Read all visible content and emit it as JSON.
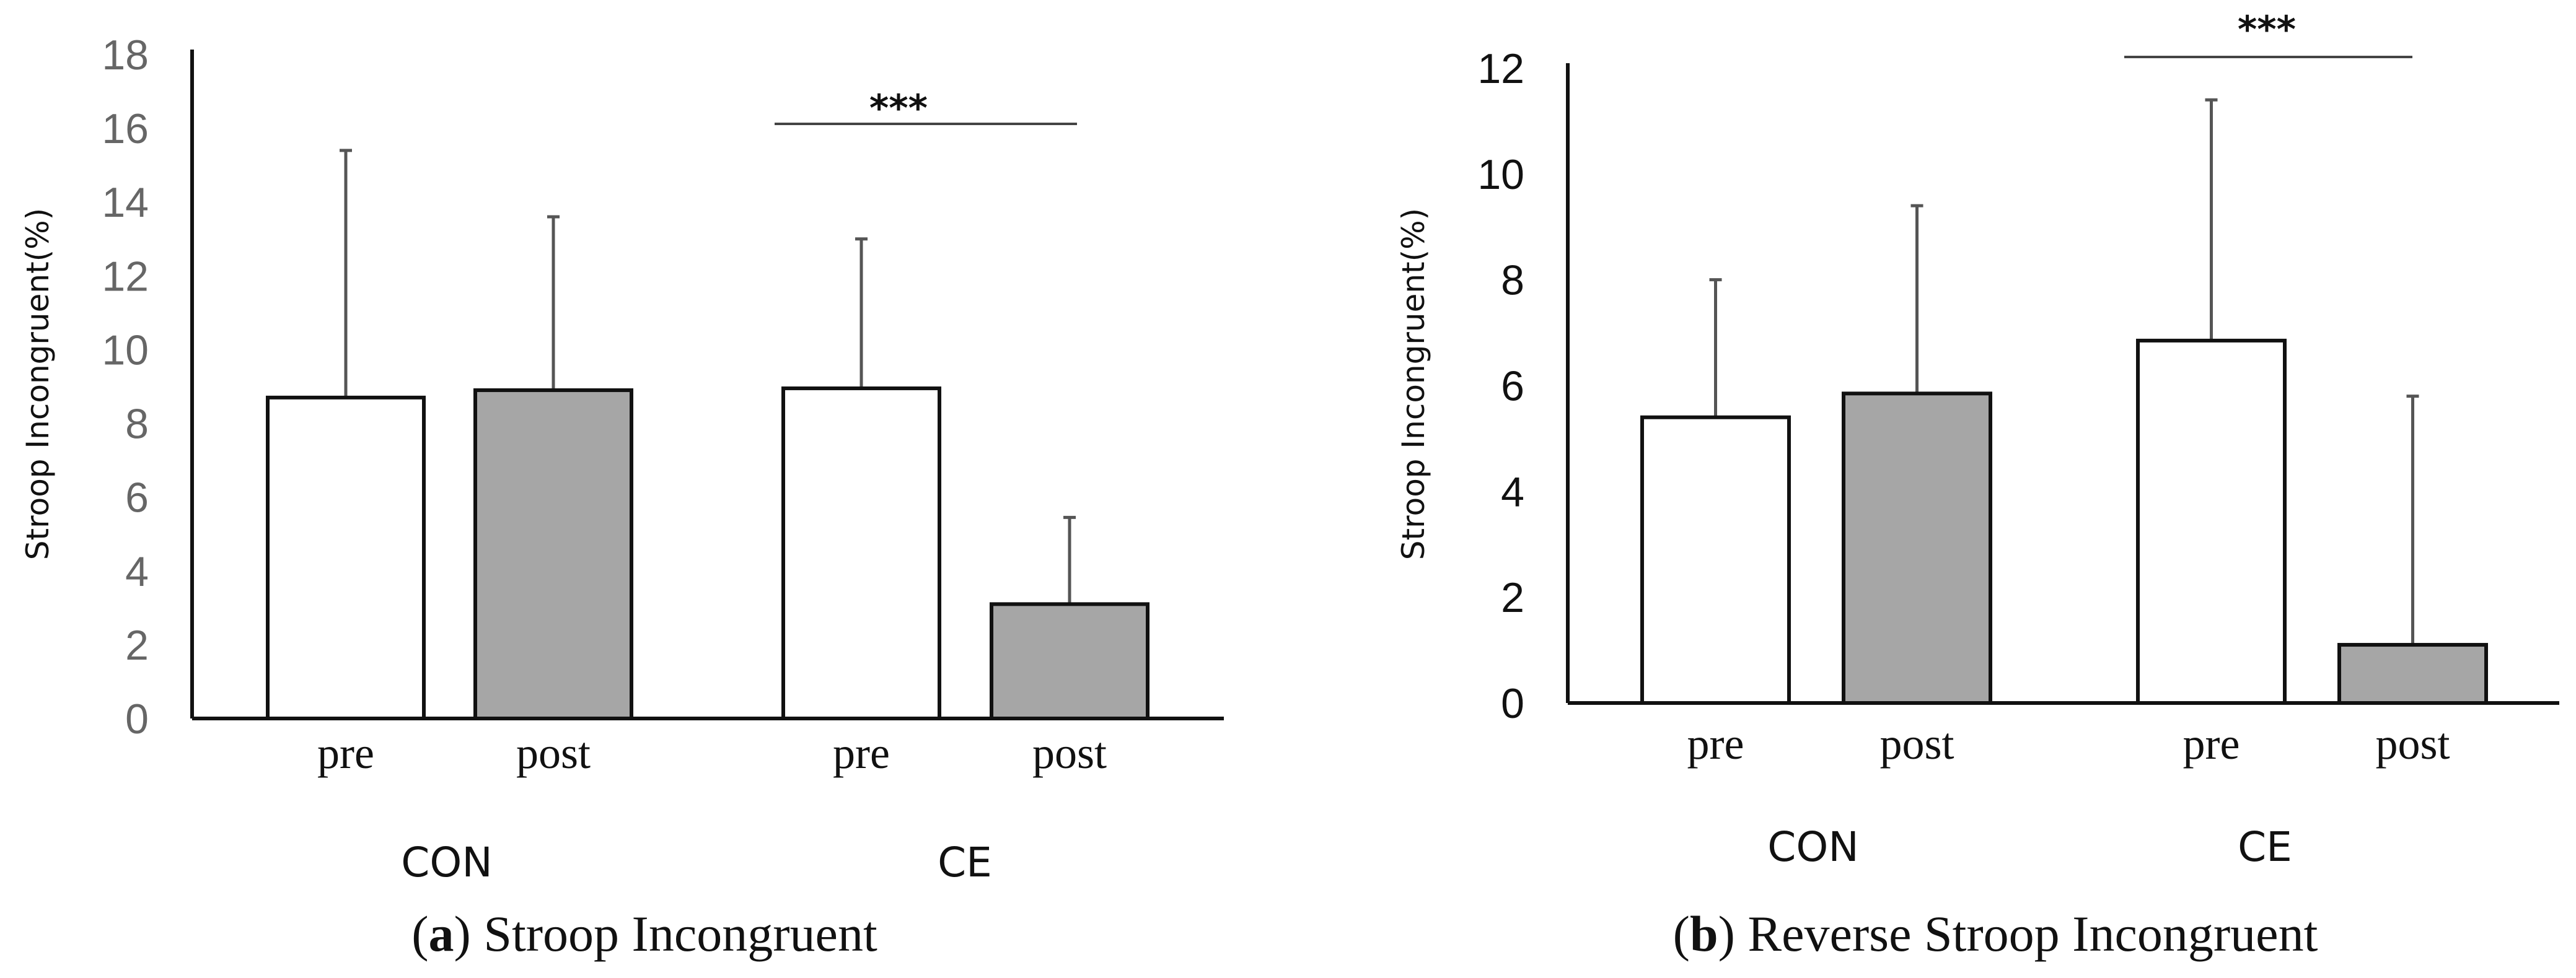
{
  "chart_data": [
    {
      "type": "bar",
      "panel_letter": "a",
      "title": "Stroop Incongruent",
      "ylabel": "Stroop Incongruent(%)",
      "ylim": [
        0,
        18
      ],
      "yticks": [
        0,
        2,
        4,
        6,
        8,
        10,
        12,
        14,
        16,
        18
      ],
      "groups": [
        {
          "name": "CON",
          "categories": [
            "pre",
            "post"
          ],
          "values": [
            8.7,
            8.9
          ],
          "errors": [
            6.7,
            4.7
          ]
        },
        {
          "name": "CE",
          "categories": [
            "pre",
            "post"
          ],
          "values": [
            8.95,
            3.1
          ],
          "errors": [
            4.05,
            2.35
          ]
        }
      ],
      "series_colors": {
        "pre": "#ffffff",
        "post": "#a6a6a6"
      },
      "significance": {
        "group": "CE",
        "label": "***"
      }
    },
    {
      "type": "bar",
      "panel_letter": "b",
      "title": "Reverse Stroop Incongruent",
      "ylabel": "Stroop Incongruent(%)",
      "ylim": [
        0,
        12
      ],
      "yticks": [
        0,
        2,
        4,
        6,
        8,
        10,
        12
      ],
      "groups": [
        {
          "name": "CON",
          "categories": [
            "pre",
            "post"
          ],
          "values": [
            5.4,
            5.85
          ],
          "errors": [
            2.6,
            3.55
          ]
        },
        {
          "name": "CE",
          "categories": [
            "pre",
            "post"
          ],
          "values": [
            6.85,
            1.1
          ],
          "errors": [
            4.55,
            4.7
          ]
        }
      ],
      "series_colors": {
        "pre": "#ffffff",
        "post": "#a6a6a6"
      },
      "significance": {
        "group": "CE",
        "label": "***"
      }
    }
  ]
}
